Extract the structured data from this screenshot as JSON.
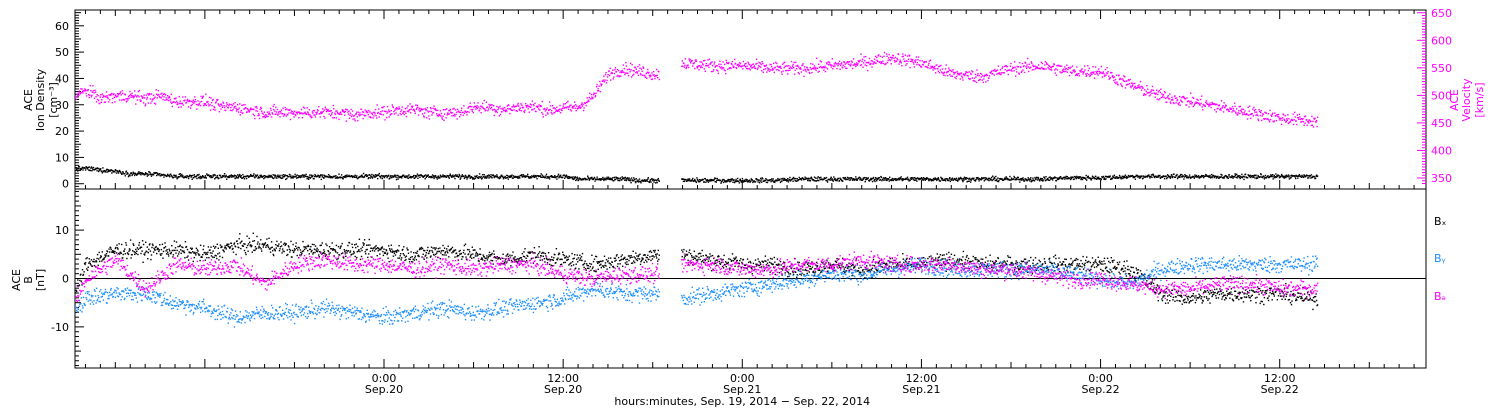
{
  "chart_data": [
    {
      "type": "scatter",
      "panel": "ion-density-velocity",
      "y_left_label": [
        "ACE",
        "Ion Density",
        "[cm⁻³]"
      ],
      "y_left_ticks": [
        0,
        10,
        20,
        30,
        40,
        50,
        60
      ],
      "y_left_lim": [
        -2,
        66
      ],
      "y_right_label": [
        "ACE",
        "Velocity",
        "[km/s]"
      ],
      "y_right_ticks": [
        350,
        400,
        450,
        500,
        550,
        600,
        650
      ],
      "y_right_lim": [
        330,
        655
      ],
      "x_range_hours": [
        -20.7,
        69.8
      ],
      "data_end_hour": 62.5,
      "gap_hours": [
        [
          18.4,
          19.9
        ]
      ],
      "series": [
        {
          "axis": "left",
          "color": "#000000",
          "points": [
            [
              -20.7,
              6
            ],
            [
              -20,
              6
            ],
            [
              -19,
              5.5
            ],
            [
              -18,
              5
            ],
            [
              -17,
              4
            ],
            [
              -16,
              4
            ],
            [
              -15,
              3.5
            ],
            [
              -14,
              3
            ],
            [
              -13,
              3
            ],
            [
              -12,
              3
            ],
            [
              -11,
              3
            ],
            [
              -10,
              3
            ],
            [
              -9,
              3
            ],
            [
              -8,
              3
            ],
            [
              -7,
              3
            ],
            [
              -6,
              3
            ],
            [
              -5,
              3
            ],
            [
              -4,
              3
            ],
            [
              -3,
              3
            ],
            [
              -2,
              3
            ],
            [
              -1,
              3
            ],
            [
              0,
              3
            ],
            [
              1,
              3
            ],
            [
              2,
              3
            ],
            [
              3,
              3
            ],
            [
              4,
              3
            ],
            [
              5,
              3
            ],
            [
              6,
              3
            ],
            [
              7,
              3
            ],
            [
              8,
              3
            ],
            [
              9,
              3
            ],
            [
              10,
              3
            ],
            [
              11,
              3
            ],
            [
              12,
              3
            ],
            [
              13,
              2
            ],
            [
              14,
              2
            ],
            [
              15,
              2
            ],
            [
              16,
              2
            ],
            [
              17,
              1.5
            ],
            [
              18,
              1.5
            ],
            [
              18.4,
              1.5
            ],
            [
              19.9,
              1.5
            ],
            [
              22,
              1.5
            ],
            [
              24,
              1.5
            ],
            [
              26,
              1.5
            ],
            [
              28,
              2
            ],
            [
              30,
              2
            ],
            [
              32,
              2
            ],
            [
              34,
              2
            ],
            [
              36,
              2
            ],
            [
              38,
              2
            ],
            [
              40,
              2
            ],
            [
              42,
              2
            ],
            [
              44,
              2
            ],
            [
              46,
              2.5
            ],
            [
              48,
              2.5
            ],
            [
              50,
              3
            ],
            [
              52,
              3
            ],
            [
              54,
              3
            ],
            [
              56,
              3
            ],
            [
              58,
              3
            ],
            [
              60,
              3
            ],
            [
              62,
              3
            ],
            [
              62.5,
              3
            ]
          ]
        },
        {
          "axis": "right",
          "color": "#ff00ff",
          "points": [
            [
              -20.7,
              500
            ],
            [
              -20,
              510
            ],
            [
              -19,
              495
            ],
            [
              -18,
              500
            ],
            [
              -17,
              500
            ],
            [
              -16,
              495
            ],
            [
              -15,
              500
            ],
            [
              -14,
              490
            ],
            [
              -13,
              490
            ],
            [
              -12,
              490
            ],
            [
              -11,
              480
            ],
            [
              -10,
              480
            ],
            [
              -9,
              475
            ],
            [
              -8,
              470
            ],
            [
              -7,
              470
            ],
            [
              -6,
              470
            ],
            [
              -5,
              470
            ],
            [
              -4,
              470
            ],
            [
              -3,
              470
            ],
            [
              -2,
              465
            ],
            [
              -1,
              470
            ],
            [
              0,
              470
            ],
            [
              1,
              475
            ],
            [
              2,
              475
            ],
            [
              3,
              470
            ],
            [
              4,
              470
            ],
            [
              5,
              470
            ],
            [
              6,
              480
            ],
            [
              7,
              480
            ],
            [
              8,
              475
            ],
            [
              9,
              480
            ],
            [
              10,
              480
            ],
            [
              11,
              475
            ],
            [
              12,
              478
            ],
            [
              13,
              480
            ],
            [
              14,
              500
            ],
            [
              15,
              540
            ],
            [
              16,
              550
            ],
            [
              17,
              545
            ],
            [
              18,
              540
            ],
            [
              18.4,
              540
            ],
            [
              19.9,
              560
            ],
            [
              22,
              555
            ],
            [
              24,
              555
            ],
            [
              26,
              550
            ],
            [
              28,
              550
            ],
            [
              30,
              555
            ],
            [
              32,
              560
            ],
            [
              34,
              570
            ],
            [
              36,
              560
            ],
            [
              38,
              540
            ],
            [
              40,
              535
            ],
            [
              42,
              550
            ],
            [
              44,
              555
            ],
            [
              46,
              545
            ],
            [
              48,
              545
            ],
            [
              50,
              520
            ],
            [
              52,
              500
            ],
            [
              54,
              490
            ],
            [
              56,
              480
            ],
            [
              58,
              470
            ],
            [
              60,
              460
            ],
            [
              62,
              455
            ],
            [
              62.5,
              455
            ]
          ]
        }
      ]
    },
    {
      "type": "scatter",
      "panel": "magnetic-field",
      "y_label": [
        "ACE",
        "B",
        "[nT]"
      ],
      "y_ticks": [
        -10,
        0,
        10
      ],
      "y_lim": [
        -18.5,
        18.5
      ],
      "zero_line": true,
      "x_range_hours": [
        -20.7,
        69.8
      ],
      "data_end_hour": 62.5,
      "gap_hours": [
        [
          18.4,
          19.9
        ]
      ],
      "legend": [
        "Bₓ",
        "Bᵧ",
        "Bₔ"
      ],
      "series": [
        {
          "name": "Bx",
          "color": "#000000",
          "points": [
            [
              -20.7,
              -3
            ],
            [
              -20,
              3
            ],
            [
              -18,
              6
            ],
            [
              -16,
              6
            ],
            [
              -14,
              6
            ],
            [
              -12,
              5
            ],
            [
              -10,
              7
            ],
            [
              -8,
              7
            ],
            [
              -6,
              6
            ],
            [
              -4,
              6
            ],
            [
              -2,
              6
            ],
            [
              0,
              6
            ],
            [
              2,
              5
            ],
            [
              4,
              6
            ],
            [
              6,
              5
            ],
            [
              8,
              4
            ],
            [
              10,
              5
            ],
            [
              12,
              4
            ],
            [
              14,
              3
            ],
            [
              16,
              4
            ],
            [
              18,
              5
            ],
            [
              18.4,
              5
            ],
            [
              19.9,
              5
            ],
            [
              22,
              4
            ],
            [
              24,
              3
            ],
            [
              26,
              3
            ],
            [
              28,
              2
            ],
            [
              30,
              3
            ],
            [
              32,
              2
            ],
            [
              34,
              3
            ],
            [
              36,
              3
            ],
            [
              38,
              4
            ],
            [
              40,
              3
            ],
            [
              42,
              3
            ],
            [
              44,
              3
            ],
            [
              46,
              3
            ],
            [
              48,
              3
            ],
            [
              50,
              2
            ],
            [
              52,
              -3
            ],
            [
              54,
              -4
            ],
            [
              56,
              -3
            ],
            [
              58,
              -3
            ],
            [
              60,
              -3
            ],
            [
              62,
              -4
            ],
            [
              62.5,
              -4
            ]
          ]
        },
        {
          "name": "By",
          "color": "#1e90ff",
          "points": [
            [
              -20.7,
              -6
            ],
            [
              -20,
              -4
            ],
            [
              -18,
              -3
            ],
            [
              -16,
              -3
            ],
            [
              -14,
              -5
            ],
            [
              -12,
              -6
            ],
            [
              -10,
              -8
            ],
            [
              -8,
              -7
            ],
            [
              -6,
              -7
            ],
            [
              -4,
              -6
            ],
            [
              -2,
              -7
            ],
            [
              0,
              -8
            ],
            [
              2,
              -7
            ],
            [
              4,
              -6
            ],
            [
              6,
              -7
            ],
            [
              8,
              -6
            ],
            [
              10,
              -5
            ],
            [
              12,
              -4
            ],
            [
              14,
              -2
            ],
            [
              16,
              -3
            ],
            [
              18,
              -3
            ],
            [
              18.4,
              -3
            ],
            [
              19.9,
              -4
            ],
            [
              22,
              -3
            ],
            [
              24,
              -2
            ],
            [
              26,
              -1
            ],
            [
              28,
              0
            ],
            [
              30,
              1
            ],
            [
              32,
              1
            ],
            [
              34,
              2
            ],
            [
              36,
              3
            ],
            [
              38,
              2
            ],
            [
              40,
              2
            ],
            [
              42,
              2
            ],
            [
              44,
              2
            ],
            [
              46,
              1
            ],
            [
              48,
              0
            ],
            [
              50,
              -1
            ],
            [
              52,
              2
            ],
            [
              54,
              3
            ],
            [
              56,
              3
            ],
            [
              58,
              3
            ],
            [
              60,
              3
            ],
            [
              62,
              3
            ],
            [
              62.5,
              4
            ]
          ]
        },
        {
          "name": "Bz",
          "color": "#ff00ff",
          "points": [
            [
              -20.7,
              -5
            ],
            [
              -20,
              0
            ],
            [
              -18,
              4
            ],
            [
              -16,
              -2
            ],
            [
              -14,
              3
            ],
            [
              -12,
              2
            ],
            [
              -10,
              3
            ],
            [
              -8,
              -1
            ],
            [
              -6,
              3
            ],
            [
              -4,
              4
            ],
            [
              -2,
              3
            ],
            [
              0,
              3
            ],
            [
              2,
              2
            ],
            [
              4,
              3
            ],
            [
              6,
              2
            ],
            [
              8,
              3
            ],
            [
              10,
              3
            ],
            [
              12,
              1
            ],
            [
              14,
              0
            ],
            [
              16,
              1
            ],
            [
              18,
              1
            ],
            [
              18.4,
              1
            ],
            [
              19.9,
              3
            ],
            [
              22,
              3
            ],
            [
              24,
              2
            ],
            [
              26,
              2
            ],
            [
              28,
              3
            ],
            [
              30,
              3
            ],
            [
              32,
              4
            ],
            [
              34,
              3
            ],
            [
              36,
              3
            ],
            [
              38,
              3
            ],
            [
              40,
              2
            ],
            [
              42,
              2
            ],
            [
              44,
              1
            ],
            [
              46,
              0
            ],
            [
              48,
              0
            ],
            [
              50,
              -1
            ],
            [
              52,
              -2
            ],
            [
              54,
              -2
            ],
            [
              56,
              -1
            ],
            [
              58,
              -1
            ],
            [
              60,
              -2
            ],
            [
              62,
              -2
            ],
            [
              62.5,
              -2
            ]
          ]
        }
      ]
    }
  ],
  "x_axis": {
    "ticks": [
      {
        "hour": 0,
        "time": "0:00",
        "date": "Sep.20"
      },
      {
        "hour": 12,
        "time": "12:00",
        "date": "Sep.20"
      },
      {
        "hour": 24,
        "time": "0:00",
        "date": "Sep.21"
      },
      {
        "hour": 36,
        "time": "12:00",
        "date": "Sep.21"
      },
      {
        "hour": 48,
        "time": "0:00",
        "date": "Sep.22"
      },
      {
        "hour": 60,
        "time": "12:00",
        "date": "Sep.22"
      }
    ],
    "title": "hours:minutes, Sep. 19, 2014 − Sep. 22, 2014"
  },
  "colors": {
    "density": "#000000",
    "velocity": "#ff00ff",
    "bx": "#000000",
    "by": "#1e90ff",
    "bz": "#ff00ff"
  }
}
